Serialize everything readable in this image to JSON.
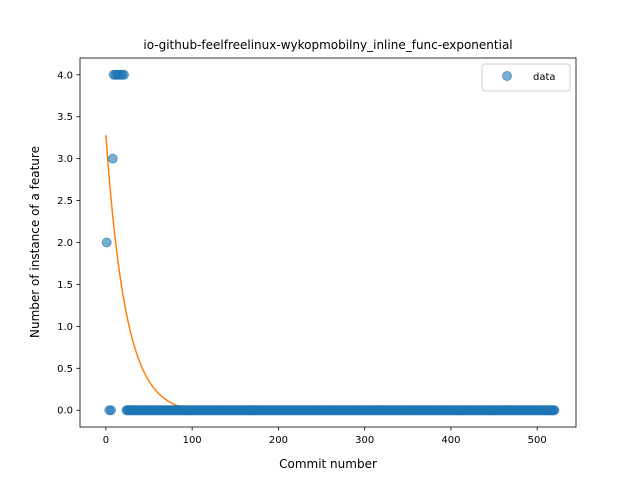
{
  "chart_data": {
    "type": "scatter",
    "title": "io-github-feelfreelinux-wykopmobilny_inline_func-exponential",
    "xlabel": "Commit number",
    "ylabel": "Number of instance of a feature",
    "xlim": [
      -30,
      545
    ],
    "ylim": [
      -0.2,
      4.2
    ],
    "xticks": [
      0,
      100,
      200,
      300,
      400,
      500
    ],
    "yticks": [
      0.0,
      0.5,
      1.0,
      1.5,
      2.0,
      2.5,
      3.0,
      3.5,
      4.0
    ],
    "xtick_labels": [
      "0",
      "100",
      "200",
      "300",
      "400",
      "500"
    ],
    "ytick_labels": [
      "0.0",
      "0.5",
      "1.0",
      "1.5",
      "2.0",
      "2.5",
      "3.0",
      "3.5",
      "4.0"
    ],
    "grid": false,
    "legend_position": "top-right",
    "series": [
      {
        "name": "data",
        "kind": "scatter",
        "color": "#1f77b4",
        "points": [
          {
            "x": 1,
            "y": 2
          },
          {
            "x": 4,
            "y": 0
          },
          {
            "x": 6,
            "y": 0
          },
          {
            "x": 8,
            "y": 3
          },
          {
            "x": 9,
            "y": 4
          },
          {
            "x": 11,
            "y": 4
          },
          {
            "x": 13,
            "y": 4
          },
          {
            "x": 15,
            "y": 4
          },
          {
            "x": 17,
            "y": 4
          },
          {
            "x": 19,
            "y": 4
          },
          {
            "x": 21,
            "y": 4
          }
        ],
        "zero_run": {
          "from": 24,
          "to": 520,
          "y": 0
        }
      },
      {
        "name": "",
        "kind": "line",
        "color": "#ff7f0e",
        "model": {
          "a": 3.32,
          "b": 0.043,
          "c": -0.04,
          "x_from": 0,
          "x_to": 520
        }
      }
    ]
  }
}
